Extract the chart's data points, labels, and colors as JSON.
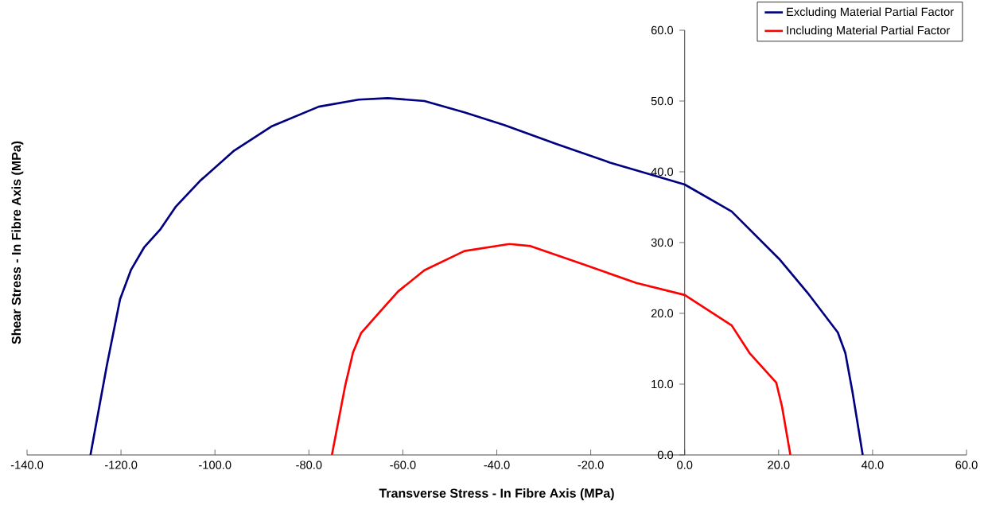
{
  "chart_data": {
    "type": "line",
    "xlabel": "Transverse Stress - In Fibre Axis (MPa)",
    "ylabel": "Shear Stress  - In Fibre Axis (MPa)",
    "series": [
      {
        "name": "Excluding Material Partial Factor",
        "color": "#000080",
        "x": [
          -126.5,
          -123.0,
          -120.2,
          -117.9,
          -115.1,
          -111.7,
          -108.3,
          -103.2,
          -95.9,
          -88.0,
          -77.9,
          -69.4,
          -63.2,
          -55.4,
          -46.9,
          -38.4,
          -27.2,
          -15.9,
          -4.6,
          0,
          10.0,
          20.1,
          26.4,
          32.6,
          34.2,
          35.7,
          37.9
        ],
        "values": [
          0,
          12.7,
          22.0,
          26.1,
          29.3,
          31.8,
          35.1,
          38.7,
          43.0,
          46.4,
          49.2,
          50.2,
          50.4,
          50.0,
          48.4,
          46.6,
          43.9,
          41.3,
          39.1,
          38.2,
          34.4,
          27.7,
          22.7,
          17.3,
          14.4,
          9.0,
          0
        ]
      },
      {
        "name": "Including Material Partial Factor",
        "color": "#ff0000",
        "x": [
          -75.1,
          -72.3,
          -70.6,
          -68.9,
          -64.9,
          -61.0,
          -55.4,
          -46.9,
          -37.3,
          -32.8,
          -21.5,
          -10.3,
          0,
          10.0,
          13.8,
          19.5,
          20.7,
          22.5
        ],
        "values": [
          0,
          9.7,
          14.5,
          17.2,
          20.2,
          23.1,
          26.1,
          28.8,
          29.8,
          29.5,
          26.9,
          24.3,
          22.6,
          18.3,
          14.4,
          10.2,
          6.9,
          0
        ]
      }
    ],
    "xlim": [
      -140,
      60
    ],
    "ylim": [
      0,
      60
    ],
    "xticks": [
      {
        "value": -140,
        "label": "-140.0"
      },
      {
        "value": -120,
        "label": "-120.0"
      },
      {
        "value": -100,
        "label": "-100.0"
      },
      {
        "value": -80,
        "label": "-80.0"
      },
      {
        "value": -60,
        "label": "-60.0"
      },
      {
        "value": -40,
        "label": "-40.0"
      },
      {
        "value": -20,
        "label": "-20.0"
      },
      {
        "value": 0,
        "label": "0.0"
      },
      {
        "value": 20,
        "label": "20.0"
      },
      {
        "value": 40,
        "label": "40.0"
      },
      {
        "value": 60,
        "label": "60.0"
      }
    ],
    "yticks": [
      {
        "value": 0,
        "label": "0.0"
      },
      {
        "value": 10,
        "label": "10.0"
      },
      {
        "value": 20,
        "label": "20.0"
      },
      {
        "value": 30,
        "label": "30.0"
      },
      {
        "value": 40,
        "label": "40.0"
      },
      {
        "value": 50,
        "label": "50.0"
      },
      {
        "value": 60,
        "label": "60.0"
      }
    ],
    "legend": "top right",
    "grid": false,
    "marker": "none",
    "line_style": "solid"
  }
}
